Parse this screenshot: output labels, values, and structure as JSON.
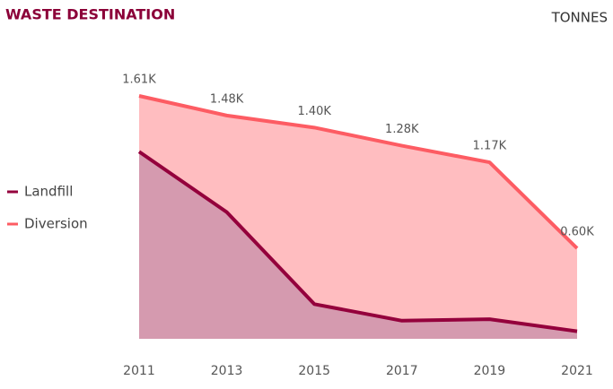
{
  "chart_data": {
    "type": "area",
    "title": "WASTE DESTINATION",
    "unit_label": "TONNES",
    "x": [
      2011,
      2013,
      2015,
      2017,
      2019,
      2021
    ],
    "xlim": [
      2011,
      2021
    ],
    "ylim": [
      0,
      1610
    ],
    "legend": "left",
    "series": [
      {
        "name": "Diversion",
        "color": "#fd5c63",
        "fill": "#ffbdc0",
        "values": [
          1610,
          1480,
          1400,
          1280,
          1170,
          600
        ],
        "value_labels": [
          "1.61K",
          "1.48K",
          "1.40K",
          "1.28K",
          "1.17K",
          "0.60K"
        ]
      },
      {
        "name": "Landfill",
        "color": "#94003c",
        "fill": "#d59aaf",
        "values": [
          1240,
          840,
          230,
          120,
          130,
          50
        ]
      }
    ]
  }
}
